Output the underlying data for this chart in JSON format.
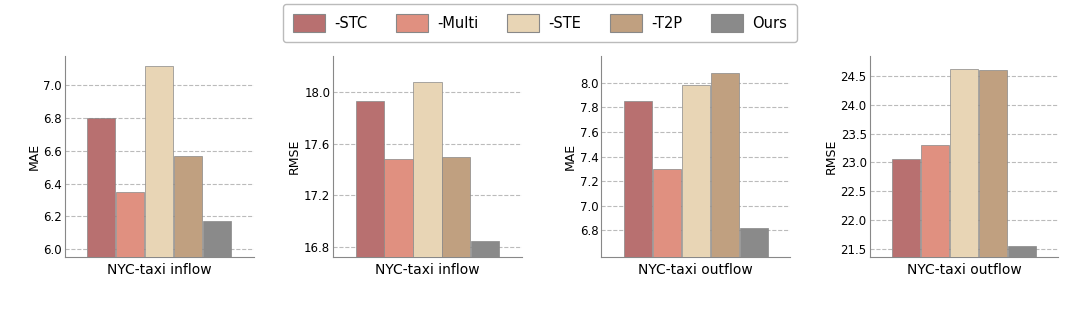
{
  "subplots": [
    {
      "title": "NYC-taxi inflow",
      "ylabel": "MAE",
      "values": [
        6.8,
        6.35,
        7.12,
        6.57,
        6.17
      ],
      "ylim": [
        5.95,
        7.18
      ],
      "yticks": [
        6.0,
        6.2,
        6.4,
        6.6,
        6.8,
        7.0
      ]
    },
    {
      "title": "NYC-taxi inflow",
      "ylabel": "RMSE",
      "values": [
        17.93,
        17.48,
        18.08,
        17.5,
        16.85
      ],
      "ylim": [
        16.72,
        18.28
      ],
      "yticks": [
        16.8,
        17.2,
        17.6,
        18.0
      ]
    },
    {
      "title": "NYC-taxi outflow",
      "ylabel": "MAE",
      "values": [
        7.85,
        7.3,
        7.98,
        8.08,
        6.82
      ],
      "ylim": [
        6.58,
        8.22
      ],
      "yticks": [
        6.8,
        7.0,
        7.2,
        7.4,
        7.6,
        7.8,
        8.0
      ]
    },
    {
      "title": "NYC-taxi outflow",
      "ylabel": "RMSE",
      "values": [
        23.05,
        23.3,
        24.62,
        24.6,
        21.55
      ],
      "ylim": [
        21.35,
        24.85
      ],
      "yticks": [
        21.5,
        22.0,
        22.5,
        23.0,
        23.5,
        24.0,
        24.5
      ]
    }
  ],
  "bar_colors": [
    "#b87070",
    "#e09080",
    "#e8d5b5",
    "#c0a080",
    "#8a8a8a"
  ],
  "legend_labels": [
    "-STC",
    "-Multi",
    "-STE",
    "-T2P",
    "Ours"
  ],
  "bar_width": 0.16,
  "bar_edge_color": "#888888",
  "bar_edge_width": 0.5,
  "grid_color": "#bbbbbb",
  "grid_style": "--",
  "background_color": "#ffffff",
  "legend_frame_color": "#bbbbbb"
}
